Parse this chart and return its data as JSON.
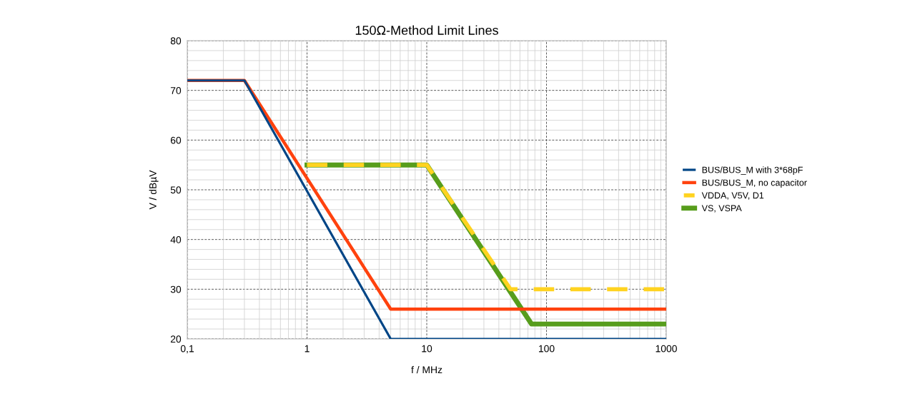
{
  "chart_data": {
    "type": "line",
    "title": "150Ω-Method Limit Lines",
    "xlabel": "f / MHz",
    "ylabel": "V / dBµV",
    "log": "x",
    "xlim": [
      0.1,
      1000
    ],
    "xticks": [
      {
        "value": 0.1,
        "label": "0,1"
      },
      1,
      10,
      100,
      1000
    ],
    "ylim": [
      20,
      80
    ],
    "yticks": [
      20,
      30,
      40,
      50,
      60,
      70,
      80
    ],
    "grid": true,
    "legend": "right",
    "marker": "none",
    "series": [
      {
        "name": "BUS/BUS_M with 3*68pF",
        "color": "#004586",
        "x": [
          0.1,
          0.3,
          5,
          1000
        ],
        "values": [
          72,
          72,
          20,
          20
        ],
        "line_style": "solid"
      },
      {
        "name": "BUS/BUS_M, no capacitor",
        "color": "#ff420e",
        "x": [
          0.1,
          0.3,
          5,
          1000
        ],
        "values": [
          72,
          72,
          26,
          26
        ],
        "line_style": "solid"
      },
      {
        "name": "VDDA, V5V, D1",
        "color": "#ffd320",
        "x": [
          1,
          10,
          50,
          1000
        ],
        "values": [
          55,
          55,
          30,
          30
        ],
        "line_style": "dashed"
      },
      {
        "name": "VS, VSPA",
        "color": "#579d1c",
        "x": [
          1,
          10,
          75,
          1000
        ],
        "values": [
          55,
          55,
          23,
          23
        ],
        "line_style": "solid"
      }
    ]
  }
}
